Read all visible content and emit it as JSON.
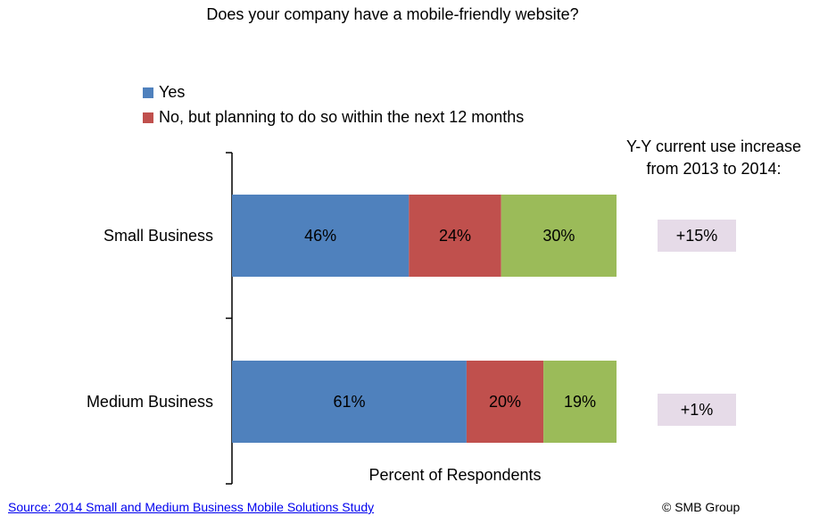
{
  "title": "Does your company have a mobile-friendly  website?",
  "legend": {
    "yes": "Yes",
    "planning": "No, but planning to do so within the next 12 months"
  },
  "side_heading": {
    "line1": "Y-Y current use increase",
    "line2": "from 2013 to 2014:"
  },
  "increases": {
    "small": "+15%",
    "medium": "+1%"
  },
  "source": "Source: 2014 Small and Medium  Business Mobile Solutions Study",
  "copyright": "© SMB Group",
  "colors": {
    "yes": "#4f81bd",
    "planning": "#c0504d",
    "third": "#9bbb59",
    "increase_box": "#e6dbe8"
  },
  "chart_data": {
    "type": "bar",
    "orientation": "horizontal",
    "stacked": true,
    "title": "Does your company have a mobile-friendly  website?",
    "xlabel": "Percent of Respondents",
    "categories": [
      "Small Business",
      "Medium Business"
    ],
    "xlim": [
      0,
      100
    ],
    "series": [
      {
        "name": "Yes",
        "values": [
          46,
          61
        ],
        "labels": [
          "46%",
          "61%"
        ],
        "color": "#4f81bd"
      },
      {
        "name": "No, but planning to do so within the next 12 months",
        "values": [
          24,
          20
        ],
        "labels": [
          "24%",
          "20%"
        ],
        "color": "#c0504d"
      },
      {
        "values": [
          30,
          19
        ],
        "labels": [
          "30%",
          "19%"
        ],
        "color": "#9bbb59"
      }
    ],
    "grid": false,
    "legend_placement": "top-left"
  }
}
